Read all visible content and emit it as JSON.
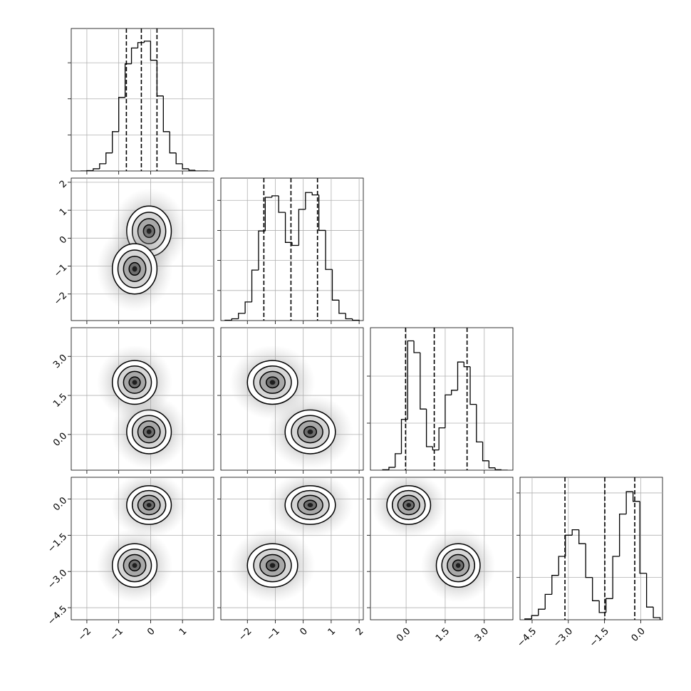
{
  "chart_data": {
    "type": "corner",
    "grid": true,
    "color": "#000000",
    "variables": [
      {
        "lim": [
          -2.49,
          1.98
        ],
        "ticks": [
          {
            "value": -2,
            "label": "−2"
          },
          {
            "value": -1,
            "label": "−1"
          },
          0,
          1
        ],
        "quantiles": [
          -0.76,
          -0.29,
          0.2
        ],
        "hist": {
          "bins": [
            -2.2,
            -2.0,
            -1.8,
            -1.6,
            -1.4,
            -1.2,
            -1.0,
            -0.8,
            -0.6,
            -0.4,
            -0.2,
            0.0,
            0.2,
            0.4,
            0.6,
            0.8,
            1.0,
            1.2,
            1.4,
            1.6,
            1.8
          ],
          "counts": [
            0,
            10,
            60,
            200,
            500,
            1090,
            2040,
            2970,
            3410,
            3560,
            3600,
            3070,
            2080,
            1090,
            500,
            200,
            60,
            20,
            0,
            0
          ],
          "ylim": [
            0,
            3950
          ],
          "yticks": [
            1000,
            2000,
            3000
          ]
        }
      },
      {
        "lim": [
          -2.95,
          2.15
        ],
        "ticks": [
          {
            "value": -2,
            "label": "−2"
          },
          {
            "value": -1,
            "label": "−1"
          },
          0,
          1,
          2
        ],
        "quantiles": [
          -1.41,
          -0.44,
          0.51
        ],
        "hist": {
          "bins": [
            -2.8,
            -2.56,
            -2.32,
            -2.08,
            -1.84,
            -1.6,
            -1.36,
            -1.12,
            -0.88,
            -0.64,
            -0.4,
            -0.16,
            0.08,
            0.32,
            0.56,
            0.8,
            1.04,
            1.28,
            1.52,
            1.76,
            2.0
          ],
          "counts": [
            10,
            60,
            240,
            620,
            1680,
            2980,
            4100,
            4150,
            3600,
            2600,
            2500,
            3700,
            4260,
            4180,
            3000,
            1700,
            680,
            240,
            60,
            10
          ],
          "ylim": [
            0,
            4740
          ],
          "yticks": [
            1000,
            2000,
            3000,
            4000
          ]
        }
      },
      {
        "lim": [
          -1.37,
          4.1
        ],
        "ticks": [
          {
            "value": 0,
            "label": "0.0"
          },
          1.5,
          {
            "value": 3,
            "label": "3.0"
          }
        ],
        "quantiles": [
          -0.02,
          1.08,
          2.34
        ],
        "hist": {
          "bins": [
            -0.9,
            -0.66,
            -0.42,
            -0.18,
            0.06,
            0.3,
            0.54,
            0.78,
            1.02,
            1.26,
            1.5,
            1.74,
            1.98,
            2.22,
            2.46,
            2.7,
            2.94,
            3.18,
            3.42,
            3.66,
            3.9
          ],
          "counts": [
            10,
            60,
            350,
            1080,
            2750,
            2500,
            1300,
            500,
            430,
            900,
            1600,
            1700,
            2300,
            2200,
            1400,
            600,
            200,
            50,
            10,
            0
          ],
          "ylim": [
            0,
            3030
          ],
          "yticks": [
            1000,
            2000
          ]
        }
      },
      {
        "lim": [
          -5.0,
          0.9
        ],
        "ticks": [
          {
            "value": -4.5,
            "label": "−4.5"
          },
          {
            "value": -3,
            "label": "−3.0"
          },
          {
            "value": -1.5,
            "label": "−1.5"
          },
          {
            "value": 0,
            "label": "0.0"
          }
        ],
        "quantiles": [
          -3.14,
          -1.49,
          -0.25
        ],
        "hist": {
          "bins": [
            -4.8,
            -4.52,
            -4.24,
            -3.96,
            -3.68,
            -3.4,
            -3.12,
            -2.84,
            -2.56,
            -2.28,
            -2.0,
            -1.72,
            -1.44,
            -1.16,
            -0.88,
            -0.6,
            -0.32,
            -0.04,
            0.24,
            0.52,
            0.8
          ],
          "counts": [
            20,
            100,
            250,
            600,
            1050,
            1500,
            2000,
            2130,
            1800,
            1000,
            450,
            170,
            500,
            1500,
            2500,
            3030,
            2800,
            1100,
            300,
            50
          ],
          "ylim": [
            0,
            3370
          ],
          "yticks": [
            1000,
            2000,
            3000
          ]
        }
      }
    ],
    "components": [
      {
        "mean": [
          -0.05,
          0.25,
          0.1,
          -0.25
        ],
        "sd": [
          0.35,
          0.45,
          0.42,
          0.4
        ]
      },
      {
        "mean": [
          -0.5,
          -1.1,
          2.0,
          -2.75
        ],
        "sd": [
          0.35,
          0.45,
          0.42,
          0.45
        ]
      }
    ]
  }
}
